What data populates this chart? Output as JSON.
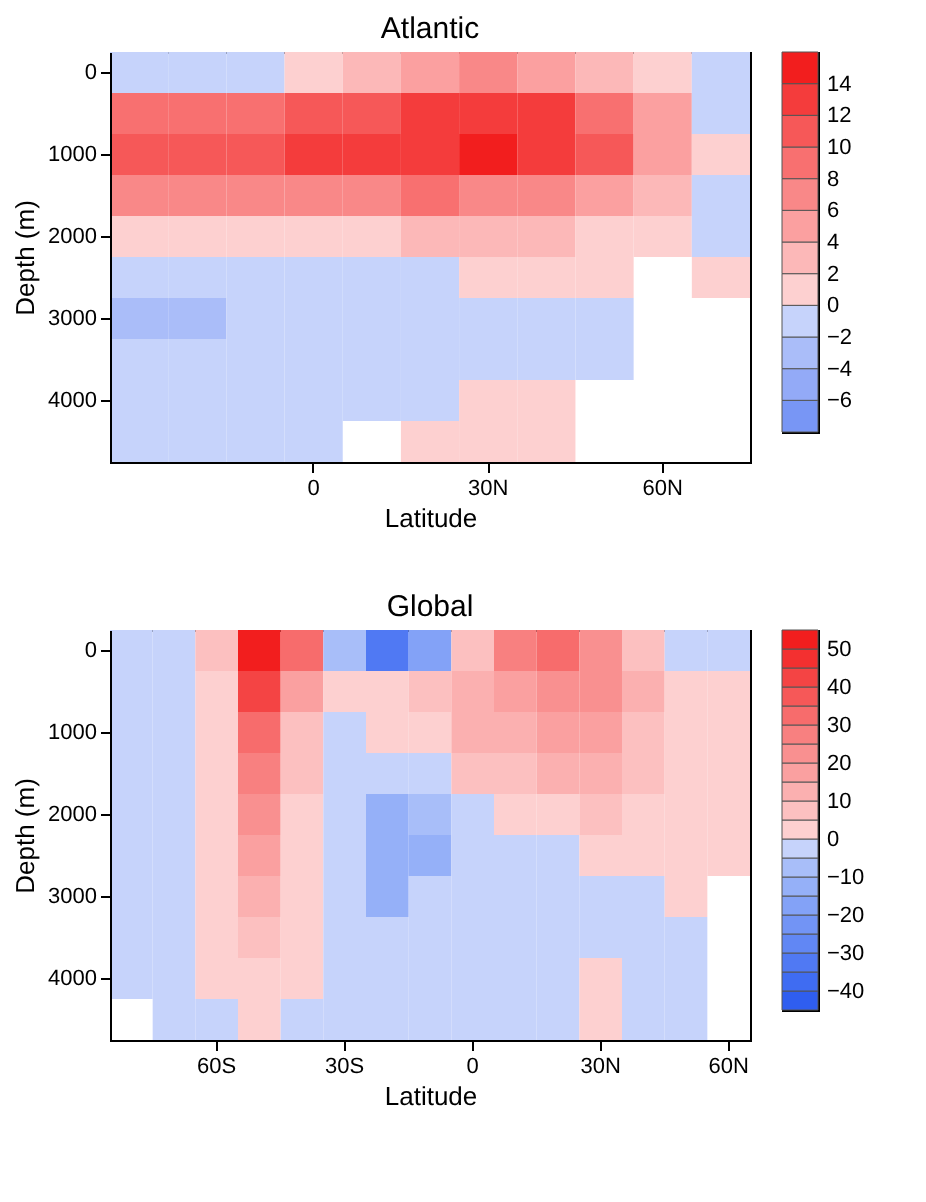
{
  "chart_data": [
    {
      "type": "heatmap",
      "title": "Atlantic",
      "xlabel": "Latitude",
      "ylabel": "Depth (m)",
      "categories": [
        null,
        null,
        null,
        "0",
        null,
        null,
        "30N",
        null,
        null,
        "60N",
        null
      ],
      "y_categories": [
        "0",
        null,
        "1000",
        null,
        "2000",
        null,
        "3000",
        null,
        "4000",
        null
      ],
      "cells": [
        [
          -2,
          -2,
          -1,
          1,
          2,
          4,
          6,
          4,
          2,
          1,
          -1
        ],
        [
          8,
          8,
          9,
          10,
          11,
          12,
          13,
          12,
          8,
          4,
          -1
        ],
        [
          11,
          10,
          11,
          12,
          12,
          13,
          14,
          12,
          10,
          5,
          1
        ],
        [
          6,
          6,
          6,
          7,
          7,
          8,
          7,
          6,
          4,
          2,
          -1
        ],
        [
          1,
          1,
          1,
          1,
          1,
          2,
          2,
          2,
          1,
          1,
          -1
        ],
        [
          -1,
          -1,
          -1,
          -1,
          -1,
          -1,
          1,
          1,
          1,
          null,
          1
        ],
        [
          -3,
          -3,
          -1,
          -1,
          -1,
          -1,
          -1,
          -1,
          -1,
          null,
          null
        ],
        [
          -2,
          -2,
          -1,
          -1,
          -1,
          -1,
          -1,
          -1,
          -1,
          null,
          null
        ],
        [
          -1,
          -1,
          -1,
          -1,
          -1,
          -1,
          1,
          1,
          null,
          null,
          null
        ],
        [
          -1,
          -1,
          -1,
          -1,
          null,
          1,
          1,
          1,
          null,
          null,
          null
        ]
      ],
      "colors": [
        "#7896f5",
        "#93aaf7",
        "#aabdf9",
        "#c6d3fb",
        "#fdd0d0",
        "#fcb8b8",
        "#fba0a0",
        "#f98888",
        "#f87070",
        "#f65858",
        "#f43c3c",
        "#f21e1e"
      ],
      "clim": [
        -8,
        16
      ],
      "cticks": [
        -6,
        -4,
        -2,
        0,
        2,
        4,
        6,
        8,
        10,
        12,
        14
      ]
    },
    {
      "type": "heatmap",
      "title": "Global",
      "xlabel": "Latitude",
      "ylabel": "Depth (m)",
      "categories": [
        null,
        null,
        "60S",
        null,
        null,
        "30S",
        null,
        null,
        "0",
        null,
        null,
        "30N",
        null,
        null,
        "60N"
      ],
      "y_categories": [
        "0",
        null,
        "1000",
        null,
        "2000",
        null,
        "3000",
        null,
        "4000",
        null
      ],
      "cells": [
        [
          -1,
          -1,
          5,
          50,
          30,
          -10,
          -35,
          -20,
          5,
          25,
          30,
          20,
          5,
          -3,
          -1
        ],
        [
          -1,
          -1,
          2,
          40,
          15,
          2,
          3,
          5,
          12,
          18,
          22,
          20,
          12,
          4,
          2
        ],
        [
          -1,
          -1,
          1,
          30,
          8,
          -1,
          2,
          3,
          10,
          12,
          18,
          15,
          8,
          3,
          2
        ],
        [
          -1,
          -1,
          1,
          25,
          5,
          -5,
          -3,
          -1,
          5,
          6,
          10,
          10,
          5,
          2,
          1
        ],
        [
          -1,
          -1,
          1,
          20,
          3,
          -5,
          -12,
          -10,
          -1,
          2,
          4,
          5,
          3,
          2,
          1
        ],
        [
          -1,
          -1,
          1,
          15,
          2,
          -5,
          -12,
          -12,
          -3,
          -1,
          -1,
          1,
          2,
          1,
          1
        ],
        [
          -1,
          -1,
          1,
          10,
          2,
          -3,
          -12,
          -5,
          -3,
          -3,
          -2,
          -2,
          -1,
          1,
          null
        ],
        [
          -1,
          -1,
          1,
          6,
          1,
          -3,
          -5,
          -3,
          -3,
          -3,
          -2,
          -2,
          -2,
          -2,
          null
        ],
        [
          -1,
          -1,
          1,
          3,
          1,
          -3,
          -3,
          -3,
          -3,
          -3,
          -2,
          1,
          -2,
          -2,
          null
        ],
        [
          null,
          -1,
          -1,
          1,
          -1,
          -3,
          -3,
          -3,
          -3,
          -3,
          -2,
          1,
          -2,
          -2,
          null
        ]
      ],
      "colors": [
        "#2f5ef0",
        "#3f6cf2",
        "#5079f3",
        "#6187f4",
        "#7294f5",
        "#83a2f7",
        "#95b0f8",
        "#a8bef9",
        "#c6d3fb",
        "#fdd0d0",
        "#fcc0c0",
        "#fbb0b0",
        "#faa0a0",
        "#f99090",
        "#f88080",
        "#f76c6c",
        "#f65858",
        "#f44444",
        "#f33030",
        "#f21e1e"
      ],
      "clim": [
        -45,
        55
      ],
      "cticks": [
        -40,
        -30,
        -20,
        -10,
        0,
        10,
        20,
        30,
        40,
        50
      ]
    }
  ]
}
